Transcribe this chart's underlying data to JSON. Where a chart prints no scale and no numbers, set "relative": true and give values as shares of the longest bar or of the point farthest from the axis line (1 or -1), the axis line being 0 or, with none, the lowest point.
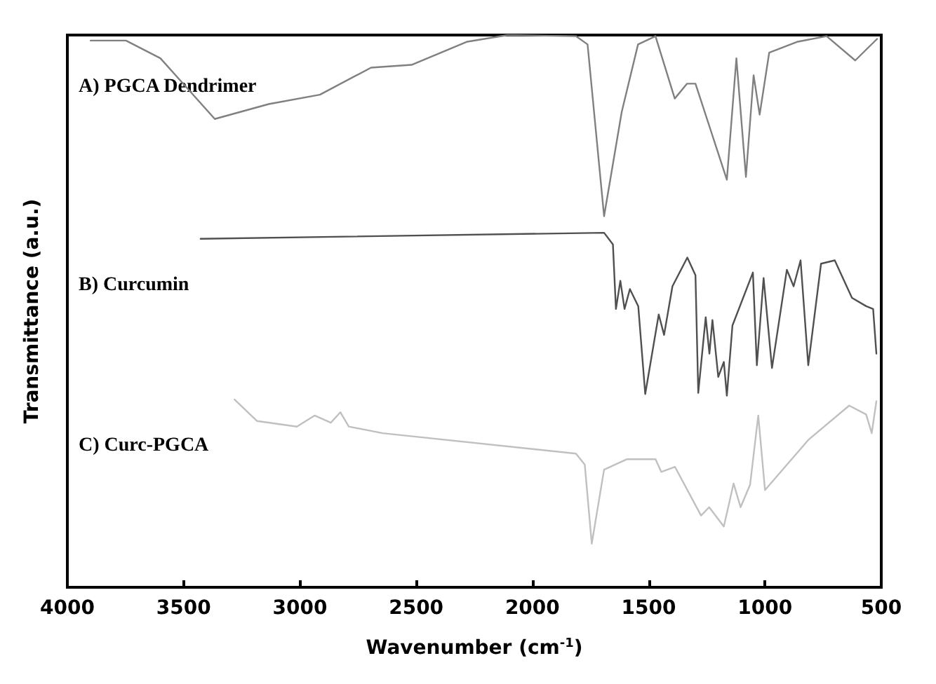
{
  "chart_data": {
    "type": "line",
    "relative": true,
    "xlabel": "Wavenumber (cm$^{-1}$)",
    "ylabel": "Transmittance (a.u.)",
    "xlim": [
      4000,
      500
    ],
    "xticks": [
      4000,
      3500,
      3000,
      2500,
      2000,
      1500,
      1000,
      500
    ],
    "grid": false,
    "legend": false,
    "marker": "none",
    "line_style": "solid",
    "series": [
      {
        "name": "A) PGCA Dendrimer",
        "color": "#808080",
        "x": [
          3900,
          3748,
          3600,
          3366,
          3134,
          2914,
          2694,
          2520,
          2280,
          2106,
          1813,
          1763,
          1692,
          1616,
          1546,
          1471,
          1388,
          1335,
          1299,
          1164,
          1123,
          1082,
          1049,
          1023,
          982,
          859,
          735,
          612,
          518
        ],
        "values": [
          0.99,
          0.99,
          0.958,
          0.848,
          0.875,
          0.892,
          0.941,
          0.946,
          0.988,
          1.0,
          0.998,
          0.983,
          0.672,
          0.861,
          0.983,
          0.998,
          0.885,
          0.912,
          0.912,
          0.738,
          0.958,
          0.743,
          0.927,
          0.856,
          0.968,
          0.988,
          0.998,
          0.954,
          0.993
        ]
      },
      {
        "name": "B) Curcumin",
        "color": "#505050",
        "x": [
          3427,
          1692,
          1654,
          1641,
          1622,
          1604,
          1581,
          1545,
          1515,
          1457,
          1434,
          1398,
          1334,
          1299,
          1287,
          1255,
          1239,
          1226,
          1201,
          1177,
          1164,
          1140,
          1052,
          1035,
          1006,
          970,
          906,
          877,
          847,
          814,
          759,
          700,
          626,
          565,
          535,
          521
        ],
        "values": [
          0.631,
          0.642,
          0.621,
          0.504,
          0.555,
          0.504,
          0.54,
          0.509,
          0.35,
          0.494,
          0.457,
          0.545,
          0.597,
          0.565,
          0.352,
          0.489,
          0.423,
          0.484,
          0.381,
          0.408,
          0.347,
          0.474,
          0.57,
          0.402,
          0.56,
          0.397,
          0.575,
          0.545,
          0.592,
          0.402,
          0.586,
          0.592,
          0.524,
          0.509,
          0.504,
          0.423
        ]
      },
      {
        "name": "C) Curc-PGCA",
        "color": "#c0c0c0",
        "x": [
          3281,
          3184,
          3013,
          2937,
          2867,
          2826,
          2790,
          2644,
          1813,
          1775,
          1745,
          1692,
          1593,
          1471,
          1446,
          1387,
          1275,
          1240,
          1177,
          1135,
          1105,
          1064,
          1029,
          1000,
          811,
          638,
          565,
          541,
          521
        ],
        "values": [
          0.34,
          0.301,
          0.291,
          0.311,
          0.298,
          0.317,
          0.291,
          0.279,
          0.242,
          0.222,
          0.079,
          0.213,
          0.232,
          0.232,
          0.209,
          0.218,
          0.13,
          0.145,
          0.11,
          0.188,
          0.145,
          0.186,
          0.311,
          0.176,
          0.268,
          0.329,
          0.313,
          0.279,
          0.337
        ]
      }
    ]
  }
}
